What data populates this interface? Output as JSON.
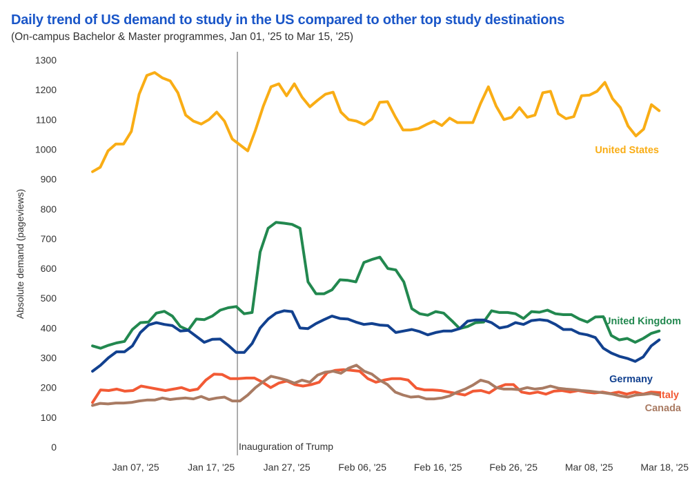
{
  "chart_data": {
    "type": "line",
    "title": "Daily trend of US demand to study in the US compared to other top study destinations",
    "subtitle": "(On-campus Bachelor & Master programmes, Jan 01, '25 to Mar 15, '25)",
    "ylabel": "Absolute demand (pageviews)",
    "xlabel": "",
    "ylim": [
      0,
      1300
    ],
    "yticks": [
      "0",
      "100",
      "200",
      "300",
      "400",
      "500",
      "600",
      "700",
      "800",
      "900",
      "1000",
      "1100",
      "1200",
      "1300"
    ],
    "xticks": [
      {
        "label": "Jan 07, '25",
        "day": 6
      },
      {
        "label": "Jan 17, '25",
        "day": 16
      },
      {
        "label": "Jan 27, '25",
        "day": 26
      },
      {
        "label": "Feb 06, '25",
        "day": 36
      },
      {
        "label": "Feb 16, '25",
        "day": 46
      },
      {
        "label": "Feb 26, '25",
        "day": 56
      },
      {
        "label": "Mar 08, '25",
        "day": 66
      },
      {
        "label": "Mar 18, '25",
        "day": 76
      }
    ],
    "annotations": [
      {
        "text": "Inauguration of Trump",
        "day": 19
      }
    ],
    "grid": false,
    "series": [
      {
        "name": "United States",
        "color": "#f9ad15",
        "values": [
          925,
          940,
          995,
          1018,
          1018,
          1060,
          1185,
          1248,
          1258,
          1240,
          1230,
          1190,
          1115,
          1095,
          1085,
          1100,
          1125,
          1095,
          1035,
          1015,
          995,
          1065,
          1145,
          1210,
          1220,
          1180,
          1220,
          1175,
          1143,
          1165,
          1185,
          1192,
          1125,
          1100,
          1095,
          1083,
          1102,
          1158,
          1160,
          1110,
          1065,
          1065,
          1070,
          1083,
          1095,
          1080,
          1105,
          1090,
          1090,
          1090,
          1155,
          1210,
          1145,
          1100,
          1108,
          1140,
          1108,
          1115,
          1190,
          1195,
          1120,
          1103,
          1110,
          1180,
          1182,
          1195,
          1225,
          1170,
          1140,
          1078,
          1045,
          1068,
          1150,
          1130
        ]
      },
      {
        "name": "United Kingdom",
        "color": "#22884f",
        "values": [
          340,
          332,
          342,
          350,
          355,
          395,
          418,
          420,
          450,
          456,
          440,
          405,
          393,
          430,
          428,
          440,
          460,
          468,
          472,
          448,
          452,
          655,
          735,
          755,
          752,
          748,
          735,
          555,
          515,
          515,
          528,
          562,
          560,
          555,
          620,
          630,
          638,
          600,
          595,
          555,
          465,
          448,
          443,
          455,
          450,
          425,
          398,
          405,
          418,
          420,
          458,
          452,
          452,
          448,
          432,
          455,
          453,
          460,
          448,
          445,
          445,
          430,
          420,
          437,
          438,
          375,
          360,
          365,
          352,
          365,
          382,
          390
        ]
      },
      {
        "name": "Germany",
        "color": "#12418f",
        "values": [
          255,
          275,
          300,
          320,
          320,
          340,
          385,
          410,
          418,
          412,
          408,
          390,
          392,
          372,
          352,
          362,
          363,
          342,
          318,
          318,
          348,
          400,
          430,
          450,
          458,
          455,
          400,
          398,
          415,
          428,
          440,
          432,
          430,
          420,
          412,
          415,
          410,
          408,
          385,
          390,
          395,
          388,
          377,
          385,
          390,
          390,
          398,
          423,
          427,
          427,
          418,
          400,
          405,
          418,
          412,
          425,
          428,
          425,
          412,
          395,
          395,
          382,
          377,
          368,
          332,
          316,
          305,
          298,
          288,
          303,
          340,
          360
        ]
      },
      {
        "name": "Italy",
        "color": "#f25a35",
        "values": [
          150,
          192,
          190,
          195,
          188,
          190,
          205,
          200,
          195,
          190,
          195,
          200,
          190,
          195,
          225,
          245,
          244,
          230,
          230,
          232,
          232,
          218,
          200,
          215,
          222,
          210,
          205,
          210,
          218,
          250,
          258,
          260,
          258,
          255,
          230,
          218,
          225,
          230,
          230,
          225,
          198,
          192,
          192,
          190,
          185,
          180,
          175,
          188,
          190,
          182,
          200,
          210,
          210,
          185,
          180,
          185,
          178,
          188,
          190,
          185,
          190,
          185,
          182,
          185,
          180,
          185,
          178,
          185,
          178,
          185,
          183
        ]
      },
      {
        "name": "Canada",
        "color": "#a97b63",
        "values": [
          140,
          147,
          145,
          148,
          148,
          150,
          155,
          158,
          158,
          165,
          160,
          163,
          165,
          162,
          170,
          160,
          165,
          168,
          155,
          155,
          175,
          200,
          220,
          238,
          232,
          225,
          215,
          225,
          218,
          242,
          252,
          255,
          248,
          265,
          275,
          255,
          245,
          225,
          210,
          185,
          175,
          168,
          170,
          162,
          162,
          165,
          172,
          185,
          195,
          208,
          225,
          218,
          200,
          195,
          195,
          193,
          200,
          195,
          198,
          205,
          198,
          195,
          193,
          190,
          188,
          185,
          182,
          178,
          172,
          168,
          175,
          177,
          180,
          175
        ]
      }
    ]
  }
}
